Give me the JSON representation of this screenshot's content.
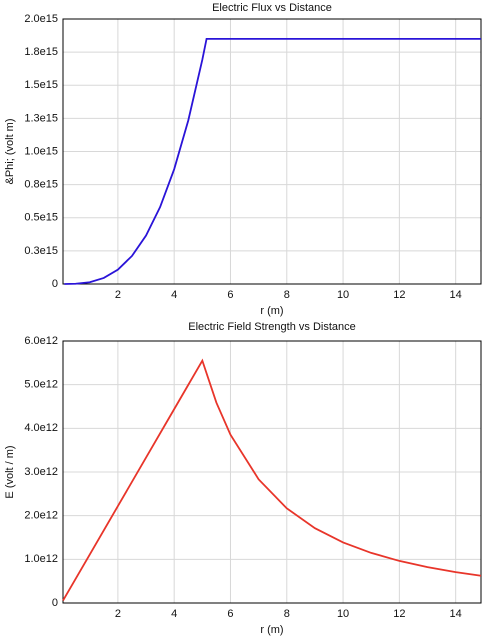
{
  "chart_data": [
    {
      "type": "line",
      "title": "Electric Flux vs Distance",
      "x_label": "r (m)",
      "y_label": "&Phi; (volt m)",
      "x": [
        0.1,
        0.5,
        1,
        1.5,
        2,
        2.5,
        3,
        3.5,
        4,
        4.5,
        5,
        5.15,
        6,
        8,
        10,
        12,
        14,
        14.9
      ],
      "values": [
        13500000000.0,
        1690000000000.0,
        13500000000000.0,
        45700000000000.0,
        108300000000000.0,
        211600000000000.0,
        365600000000000.0,
        580600000000000.0,
        866600000000000.0,
        1233900000000000.0,
        1692500000000000.0,
        1850000000000000.0,
        1850000000000000.0,
        1850000000000000.0,
        1850000000000000.0,
        1850000000000000.0,
        1850000000000000.0,
        1850000000000000.0
      ],
      "color": "#2a14d8",
      "xlim": [
        0.05,
        14.9
      ],
      "xticks": [
        2,
        4,
        6,
        8,
        10,
        12,
        14
      ],
      "ylim": [
        0,
        2000000000000000.0
      ],
      "yticks": [
        0,
        {
          "value": 250000000000000.0,
          "label": "0.3e15"
        },
        {
          "value": 500000000000000.0,
          "label": "0.5e15"
        },
        {
          "value": 750000000000000.0,
          "label": "0.8e15"
        },
        {
          "value": 1000000000000000.0,
          "label": "1.0e15"
        },
        {
          "value": 1250000000000000.0,
          "label": "1.3e15"
        },
        {
          "value": 1500000000000000.0,
          "label": "1.5e15"
        },
        {
          "value": 1750000000000000.0,
          "label": "1.8e15"
        },
        {
          "value": 2000000000000000.0,
          "label": "2.0e15"
        }
      ],
      "grid": true
    },
    {
      "type": "line",
      "title": "Electric Field Strength vs Distance",
      "x_label": "r (m)",
      "y_label": "E (volt / m)",
      "x": [
        0.05,
        1,
        2,
        3,
        4,
        4.5,
        5,
        5.5,
        6,
        7,
        8,
        9,
        10,
        11,
        12,
        13,
        14,
        14.9
      ],
      "values": [
        55500000000.0,
        1110000000000.0,
        2220000000000.0,
        3330000000000.0,
        4440000000000.0,
        4995000000000.0,
        5550000000000.0,
        4587000000000.0,
        3854000000000.0,
        2832000000000.0,
        2168000000000.0,
        1713000000000.0,
        1387500000000.0,
        1147000000000.0,
        963500000000.0,
        821000000000.0,
        707900000000.0,
        625000000000.0
      ],
      "color": "#e8352a",
      "xlim": [
        0.05,
        14.9
      ],
      "xticks": [
        2,
        4,
        6,
        8,
        10,
        12,
        14
      ],
      "ylim": [
        0,
        6000000000000.0
      ],
      "yticks": [
        0,
        {
          "value": 1000000000000.0,
          "label": "1.0e12"
        },
        {
          "value": 2000000000000.0,
          "label": "2.0e12"
        },
        {
          "value": 3000000000000.0,
          "label": "3.0e12"
        },
        {
          "value": 4000000000000.0,
          "label": "4.0e12"
        },
        {
          "value": 5000000000000.0,
          "label": "5.0e12"
        },
        {
          "value": 6000000000000.0,
          "label": "6.0e12"
        }
      ],
      "grid": true
    }
  ]
}
